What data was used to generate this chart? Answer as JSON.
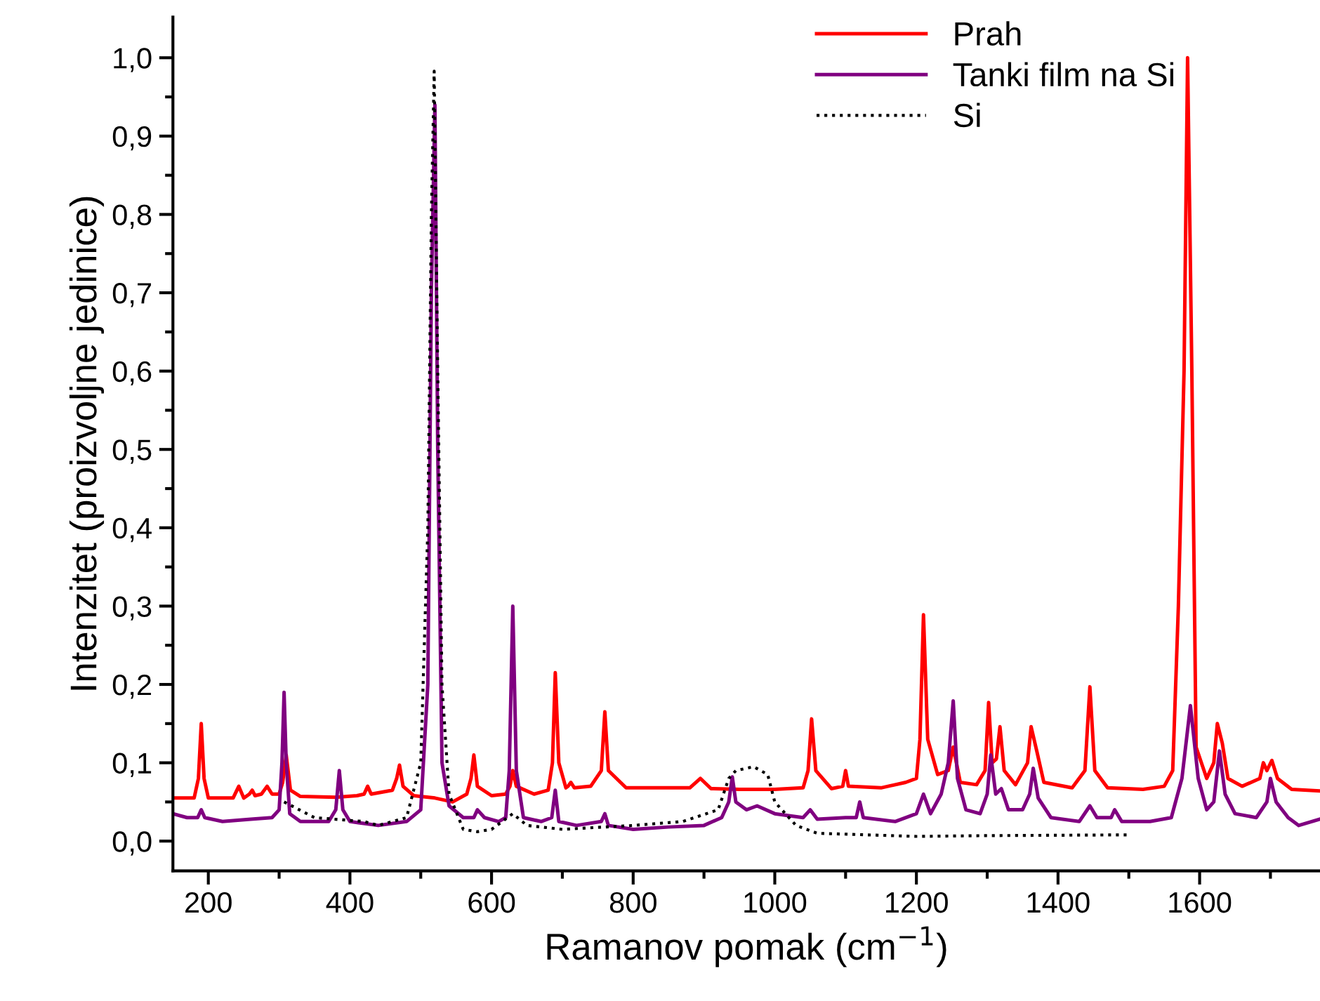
{
  "chart_data": {
    "type": "line",
    "xlabel": "Ramanov pomak (cm$^{−1}$)",
    "ylabel": "Intenzitet (proizvoljne jedinice)",
    "xlim": [
      150,
      1770
    ],
    "ylim": [
      -0.038,
      1.052
    ],
    "xticks": [
      200,
      400,
      600,
      800,
      1000,
      1200,
      1400,
      1600
    ],
    "yticks": [
      {
        "value": 0,
        "label": "0,0"
      },
      {
        "value": 0.1,
        "label": "0,1"
      },
      {
        "value": 0.2,
        "label": "0,2"
      },
      {
        "value": 0.3,
        "label": "0,3"
      },
      {
        "value": 0.4,
        "label": "0,4"
      },
      {
        "value": 0.5,
        "label": "0,5"
      },
      {
        "value": 0.6,
        "label": "0,6"
      },
      {
        "value": 0.7,
        "label": "0,7"
      },
      {
        "value": 0.8,
        "label": "0,8"
      },
      {
        "value": 0.9,
        "label": "0,9"
      },
      {
        "value": 1.0,
        "label": "1,0"
      }
    ],
    "grid": false,
    "legend": "top right",
    "marker": "none",
    "series": [
      {
        "name": "Prah",
        "color": "#ff0000",
        "line_style": "solid",
        "x": [
          150,
          180,
          186,
          190,
          194,
          200,
          235,
          243,
          250,
          258,
          262,
          266,
          275,
          283,
          290,
          300,
          305,
          310,
          316,
          330,
          380,
          410,
          420,
          425,
          430,
          460,
          466,
          470,
          475,
          490,
          520,
          545,
          565,
          571,
          575,
          580,
          600,
          620,
          626,
          630,
          635,
          660,
          680,
          686,
          690,
          695,
          705,
          708,
          712,
          717,
          740,
          755,
          760,
          765,
          790,
          850,
          880,
          895,
          910,
          950,
          1000,
          1040,
          1047,
          1052,
          1058,
          1080,
          1096,
          1100,
          1104,
          1150,
          1185,
          1200,
          1205,
          1210,
          1216,
          1230,
          1245,
          1252,
          1262,
          1285,
          1297,
          1302,
          1307,
          1313,
          1318,
          1324,
          1340,
          1357,
          1362,
          1370,
          1380,
          1420,
          1438,
          1445,
          1452,
          1470,
          1520,
          1550,
          1562,
          1570,
          1578,
          1583,
          1589,
          1595,
          1610,
          1620,
          1625,
          1632,
          1640,
          1660,
          1685,
          1690,
          1695,
          1702,
          1710,
          1730,
          1770
        ],
        "values": [
          0.055,
          0.055,
          0.08,
          0.15,
          0.08,
          0.055,
          0.055,
          0.07,
          0.055,
          0.06,
          0.065,
          0.058,
          0.06,
          0.07,
          0.06,
          0.06,
          0.075,
          0.11,
          0.065,
          0.057,
          0.056,
          0.058,
          0.06,
          0.07,
          0.06,
          0.065,
          0.08,
          0.097,
          0.07,
          0.058,
          0.055,
          0.05,
          0.06,
          0.08,
          0.11,
          0.07,
          0.058,
          0.06,
          0.07,
          0.09,
          0.07,
          0.06,
          0.065,
          0.1,
          0.215,
          0.1,
          0.068,
          0.07,
          0.075,
          0.068,
          0.07,
          0.09,
          0.165,
          0.09,
          0.068,
          0.068,
          0.068,
          0.08,
          0.067,
          0.066,
          0.066,
          0.068,
          0.09,
          0.156,
          0.09,
          0.067,
          0.07,
          0.09,
          0.07,
          0.068,
          0.075,
          0.08,
          0.13,
          0.289,
          0.13,
          0.085,
          0.09,
          0.12,
          0.075,
          0.072,
          0.09,
          0.177,
          0.1,
          0.105,
          0.146,
          0.09,
          0.072,
          0.1,
          0.146,
          0.115,
          0.075,
          0.068,
          0.09,
          0.197,
          0.09,
          0.068,
          0.066,
          0.07,
          0.09,
          0.3,
          0.6,
          1.0,
          0.6,
          0.12,
          0.08,
          0.1,
          0.15,
          0.125,
          0.08,
          0.07,
          0.08,
          0.1,
          0.09,
          0.103,
          0.08,
          0.066,
          0.064
        ]
      },
      {
        "name": "Tanki film na Si",
        "color": "#800080",
        "line_style": "solid",
        "x": [
          150,
          170,
          185,
          190,
          195,
          220,
          260,
          290,
          300,
          304,
          307,
          310,
          315,
          330,
          370,
          380,
          385,
          390,
          400,
          440,
          480,
          500,
          510,
          515,
          520,
          524,
          530,
          540,
          560,
          575,
          580,
          590,
          610,
          620,
          625,
          630,
          635,
          645,
          670,
          685,
          690,
          695,
          720,
          755,
          760,
          765,
          800,
          850,
          900,
          925,
          935,
          940,
          945,
          960,
          975,
          1000,
          1040,
          1050,
          1060,
          1100,
          1115,
          1120,
          1125,
          1170,
          1200,
          1210,
          1220,
          1235,
          1245,
          1252,
          1258,
          1270,
          1290,
          1300,
          1305,
          1312,
          1320,
          1330,
          1350,
          1360,
          1365,
          1372,
          1390,
          1430,
          1445,
          1455,
          1475,
          1480,
          1490,
          1530,
          1560,
          1575,
          1587,
          1598,
          1610,
          1620,
          1628,
          1636,
          1650,
          1680,
          1695,
          1700,
          1708,
          1725,
          1740,
          1770
        ],
        "values": [
          0.035,
          0.03,
          0.03,
          0.04,
          0.03,
          0.025,
          0.028,
          0.03,
          0.04,
          0.1,
          0.19,
          0.1,
          0.035,
          0.025,
          0.025,
          0.04,
          0.09,
          0.04,
          0.025,
          0.02,
          0.025,
          0.04,
          0.2,
          0.7,
          0.94,
          0.5,
          0.1,
          0.045,
          0.03,
          0.03,
          0.04,
          0.03,
          0.025,
          0.03,
          0.09,
          0.3,
          0.09,
          0.03,
          0.025,
          0.03,
          0.065,
          0.025,
          0.02,
          0.025,
          0.035,
          0.02,
          0.015,
          0.018,
          0.02,
          0.03,
          0.05,
          0.082,
          0.05,
          0.04,
          0.045,
          0.035,
          0.03,
          0.04,
          0.028,
          0.03,
          0.03,
          0.05,
          0.03,
          0.025,
          0.035,
          0.06,
          0.035,
          0.06,
          0.1,
          0.179,
          0.08,
          0.04,
          0.035,
          0.06,
          0.11,
          0.06,
          0.067,
          0.04,
          0.04,
          0.06,
          0.093,
          0.055,
          0.03,
          0.025,
          0.045,
          0.03,
          0.03,
          0.04,
          0.025,
          0.025,
          0.03,
          0.08,
          0.173,
          0.08,
          0.04,
          0.05,
          0.115,
          0.06,
          0.035,
          0.03,
          0.05,
          0.08,
          0.05,
          0.03,
          0.02,
          0.028
        ]
      },
      {
        "name": "Si",
        "color": "#000000",
        "line_style": "dotted",
        "x": [
          307,
          350,
          420,
          440,
          480,
          500,
          510,
          515,
          519,
          524,
          530,
          540,
          560,
          580,
          600,
          630,
          650,
          700,
          800,
          870,
          920,
          935,
          945,
          970,
          990,
          1000,
          1030,
          1060,
          1200,
          1300,
          1500
        ],
        "values": [
          0.05,
          0.03,
          0.025,
          0.02,
          0.03,
          0.1,
          0.4,
          0.8,
          0.983,
          0.6,
          0.2,
          0.06,
          0.015,
          0.012,
          0.015,
          0.035,
          0.02,
          0.015,
          0.02,
          0.025,
          0.04,
          0.08,
          0.09,
          0.095,
          0.085,
          0.05,
          0.02,
          0.01,
          0.006,
          0.007,
          0.008
        ]
      }
    ]
  }
}
